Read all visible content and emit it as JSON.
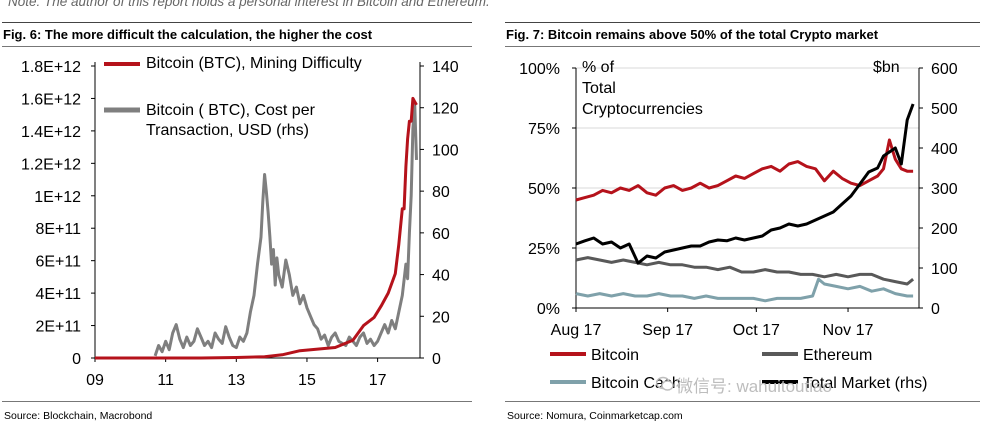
{
  "note": "Note: The author of this report holds a personal interest in Bitcoin and Ethereum.",
  "figure6": {
    "title": "Fig. 6: The more difficult the calculation, the higher the cost",
    "source": "Source: Blockchain, Macrobond"
  },
  "figure7": {
    "title": "Fig. 7: Bitcoin remains above 50% of the total Crypto market",
    "source": "Source: Nomura, Coinmarketcap.com"
  },
  "watermark": "微信号: wahuitoutiao",
  "colors": {
    "red": "#b5121b",
    "gray": "#7f7f7f",
    "darkgray": "#595959",
    "black": "#000000",
    "teal": "#7fa1aa",
    "grid": "#d9d9d9"
  },
  "chart_data": [
    {
      "id": "fig6",
      "type": "line",
      "xlabel": "",
      "ylabel": "",
      "x_ticks": [
        "09",
        "11",
        "13",
        "15",
        "17"
      ],
      "x_tick_values": [
        2009,
        2011,
        2013,
        2015,
        2017
      ],
      "xlim": [
        2009,
        2018.2
      ],
      "ylim_left": [
        0,
        1800000000000
      ],
      "ylim_right": [
        0,
        140
      ],
      "y_ticks_left": [
        "0",
        "2E+11",
        "4E+11",
        "6E+11",
        "8E+11",
        "1E+12",
        "1.2E+12",
        "1.4E+12",
        "1.6E+12",
        "1.8E+12"
      ],
      "y_tick_values_left": [
        0,
        200000000000,
        400000000000,
        600000000000,
        800000000000,
        1000000000000,
        1200000000000,
        1400000000000,
        1600000000000,
        1800000000000
      ],
      "y_ticks_right": [
        "0",
        "20",
        "40",
        "60",
        "80",
        "100",
        "120",
        "140"
      ],
      "y_tick_values_right": [
        0,
        20,
        40,
        60,
        80,
        100,
        120,
        140
      ],
      "series": [
        {
          "name": "Bitcoin (BTC), Mining Difficulty",
          "axis": "left",
          "color": "#b5121b",
          "x": [
            2009,
            2012,
            2013,
            2013.8,
            2014.3,
            2014.8,
            2015.3,
            2015.8,
            2016.3,
            2016.6,
            2016.9,
            2017.1,
            2017.3,
            2017.5,
            2017.6,
            2017.7,
            2017.75,
            2017.8,
            2017.85,
            2017.9,
            2017.95,
            2018.0,
            2018.05,
            2018.1
          ],
          "values": [
            0,
            0,
            3000000000,
            8000000000,
            20000000000,
            45000000000,
            55000000000,
            65000000000,
            110000000000,
            200000000000,
            250000000000,
            320000000000,
            400000000000,
            520000000000,
            700000000000,
            920000000000,
            920000000000,
            1180000000000,
            1350000000000,
            1460000000000,
            1460000000000,
            1600000000000,
            1580000000000,
            1560000000000
          ]
        },
        {
          "name": "Bitcoin ( BTC), Cost per Transaction, USD (rhs)",
          "axis": "right",
          "color": "#7f7f7f",
          "x": [
            2010.7,
            2010.8,
            2010.9,
            2011.0,
            2011.1,
            2011.2,
            2011.3,
            2011.4,
            2011.5,
            2011.6,
            2011.7,
            2011.8,
            2011.9,
            2012.0,
            2012.1,
            2012.2,
            2012.3,
            2012.4,
            2012.5,
            2012.6,
            2012.7,
            2012.8,
            2012.9,
            2013.0,
            2013.1,
            2013.2,
            2013.3,
            2013.4,
            2013.5,
            2013.6,
            2013.7,
            2013.75,
            2013.8,
            2013.85,
            2013.9,
            2013.95,
            2014.0,
            2014.05,
            2014.1,
            2014.15,
            2014.2,
            2014.3,
            2014.4,
            2014.5,
            2014.6,
            2014.7,
            2014.8,
            2014.9,
            2015.0,
            2015.1,
            2015.2,
            2015.3,
            2015.4,
            2015.5,
            2015.6,
            2015.7,
            2015.8,
            2015.9,
            2016.0,
            2016.1,
            2016.2,
            2016.3,
            2016.4,
            2016.5,
            2016.6,
            2016.7,
            2016.8,
            2016.9,
            2017.0,
            2017.1,
            2017.2,
            2017.3,
            2017.4,
            2017.5,
            2017.6,
            2017.7,
            2017.8,
            2017.85,
            2017.9,
            2017.95,
            2018.0,
            2018.05,
            2018.1
          ],
          "values": [
            1,
            6,
            3,
            8,
            4,
            12,
            16,
            9,
            5,
            10,
            6,
            8,
            14,
            10,
            6,
            8,
            5,
            12,
            9,
            7,
            15,
            10,
            6,
            5,
            10,
            8,
            12,
            22,
            30,
            45,
            58,
            75,
            88,
            80,
            70,
            58,
            45,
            52,
            35,
            48,
            40,
            34,
            47,
            40,
            30,
            34,
            26,
            30,
            24,
            20,
            16,
            14,
            9,
            11,
            6,
            10,
            12,
            8,
            7,
            6,
            10,
            8,
            6,
            10,
            12,
            7,
            9,
            6,
            8,
            12,
            16,
            12,
            18,
            14,
            22,
            30,
            45,
            38,
            60,
            78,
            110,
            122,
            95
          ]
        }
      ]
    },
    {
      "id": "fig7",
      "type": "line",
      "xlabel": "",
      "ylabel": "% of Total Cryptocurrencies Market",
      "ylabel_right": "$bn",
      "x_ticks": [
        "Aug 17",
        "Sep 17",
        "Oct 17",
        "Nov 17"
      ],
      "x_tick_values": [
        0,
        31,
        61,
        92
      ],
      "xlim": [
        0,
        116
      ],
      "ylim_left": [
        0,
        100
      ],
      "ylim_right": [
        0,
        600
      ],
      "y_ticks_left": [
        "0%",
        "25%",
        "50%",
        "75%",
        "100%"
      ],
      "y_tick_values_left": [
        0,
        25,
        50,
        75,
        100
      ],
      "y_ticks_right": [
        "0",
        "100",
        "200",
        "300",
        "400",
        "500",
        "600"
      ],
      "y_tick_values_right": [
        0,
        100,
        200,
        300,
        400,
        500,
        600
      ],
      "series": [
        {
          "name": "Bitcoin",
          "axis": "left",
          "color": "#b5121b",
          "x": [
            0,
            3,
            6,
            9,
            12,
            15,
            18,
            21,
            24,
            27,
            30,
            33,
            36,
            39,
            42,
            45,
            48,
            51,
            54,
            57,
            60,
            63,
            66,
            69,
            72,
            75,
            78,
            81,
            84,
            87,
            90,
            93,
            96,
            99,
            102,
            104,
            106,
            108,
            110,
            112,
            114
          ],
          "values": [
            45,
            46,
            47,
            49,
            48,
            50,
            49,
            51,
            48,
            47,
            50,
            51,
            49,
            50,
            52,
            50,
            51,
            53,
            55,
            54,
            56,
            58,
            59,
            57,
            60,
            61,
            59,
            58,
            53,
            57,
            54,
            52,
            51,
            53,
            55,
            58,
            70,
            62,
            58,
            57,
            57
          ]
        },
        {
          "name": "Ethereum",
          "axis": "left",
          "color": "#595959",
          "x": [
            0,
            4,
            8,
            12,
            16,
            20,
            24,
            28,
            32,
            36,
            40,
            44,
            48,
            52,
            56,
            60,
            64,
            68,
            72,
            76,
            80,
            84,
            88,
            92,
            96,
            100,
            104,
            108,
            112,
            114
          ],
          "values": [
            20,
            21,
            20,
            19,
            20,
            19,
            18,
            19,
            18,
            18,
            17,
            17,
            16,
            17,
            15,
            15,
            16,
            15,
            15,
            14,
            14,
            13,
            14,
            13,
            14,
            14,
            12,
            11,
            10,
            12
          ]
        },
        {
          "name": "Bitcoin Cash",
          "axis": "left",
          "color": "#7fa1aa",
          "x": [
            0,
            4,
            8,
            12,
            16,
            20,
            24,
            28,
            32,
            36,
            40,
            44,
            48,
            52,
            56,
            60,
            64,
            68,
            72,
            76,
            80,
            82,
            84,
            88,
            92,
            96,
            100,
            104,
            108,
            112,
            114
          ],
          "values": [
            6,
            5,
            6,
            5,
            6,
            5,
            5,
            6,
            5,
            5,
            4,
            5,
            4,
            4,
            4,
            4,
            3,
            4,
            4,
            4,
            5,
            12,
            10,
            9,
            8,
            9,
            7,
            8,
            6,
            5,
            5
          ]
        },
        {
          "name": "Total Market (rhs)",
          "axis": "right",
          "color": "#000000",
          "x": [
            0,
            3,
            6,
            9,
            12,
            15,
            18,
            21,
            24,
            27,
            30,
            33,
            36,
            39,
            42,
            45,
            48,
            51,
            54,
            57,
            60,
            63,
            66,
            69,
            72,
            75,
            78,
            81,
            84,
            87,
            90,
            93,
            96,
            99,
            102,
            104,
            106,
            108,
            110,
            112,
            114
          ],
          "values": [
            160,
            168,
            175,
            160,
            165,
            150,
            160,
            112,
            130,
            125,
            140,
            145,
            150,
            155,
            155,
            165,
            170,
            168,
            175,
            170,
            175,
            180,
            195,
            200,
            210,
            205,
            210,
            220,
            230,
            240,
            260,
            280,
            310,
            340,
            350,
            380,
            390,
            400,
            360,
            470,
            510
          ]
        }
      ]
    }
  ]
}
